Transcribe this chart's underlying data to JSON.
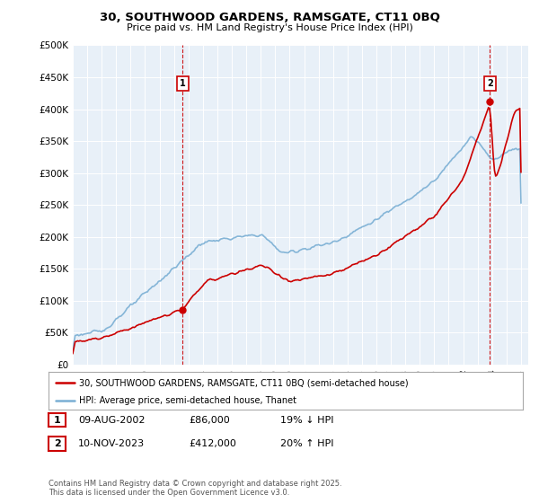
{
  "title1": "30, SOUTHWOOD GARDENS, RAMSGATE, CT11 0BQ",
  "title2": "Price paid vs. HM Land Registry's House Price Index (HPI)",
  "ylabel_ticks": [
    "£0",
    "£50K",
    "£100K",
    "£150K",
    "£200K",
    "£250K",
    "£300K",
    "£350K",
    "£400K",
    "£450K",
    "£500K"
  ],
  "ytick_vals": [
    0,
    50000,
    100000,
    150000,
    200000,
    250000,
    300000,
    350000,
    400000,
    450000,
    500000
  ],
  "xlim_start": 1995.0,
  "xlim_end": 2026.5,
  "ylim_min": 0,
  "ylim_max": 500000,
  "marker1_year": 2002.6,
  "marker1_value": 86000,
  "marker1_label": "1",
  "marker2_year": 2023.85,
  "marker2_value": 412000,
  "marker2_label": "2",
  "legend_line1": "30, SOUTHWOOD GARDENS, RAMSGATE, CT11 0BQ (semi-detached house)",
  "legend_line2": "HPI: Average price, semi-detached house, Thanet",
  "table_row1_num": "1",
  "table_row1_date": "09-AUG-2002",
  "table_row1_price": "£86,000",
  "table_row1_hpi": "19% ↓ HPI",
  "table_row2_num": "2",
  "table_row2_date": "10-NOV-2023",
  "table_row2_price": "£412,000",
  "table_row2_hpi": "20% ↑ HPI",
  "footer": "Contains HM Land Registry data © Crown copyright and database right 2025.\nThis data is licensed under the Open Government Licence v3.0.",
  "line_color_property": "#cc0000",
  "line_color_hpi": "#7aafd4",
  "vline_color": "#cc0000",
  "chart_bg": "#e8f0f8",
  "grid_color": "#ffffff",
  "box_color": "#cc0000"
}
